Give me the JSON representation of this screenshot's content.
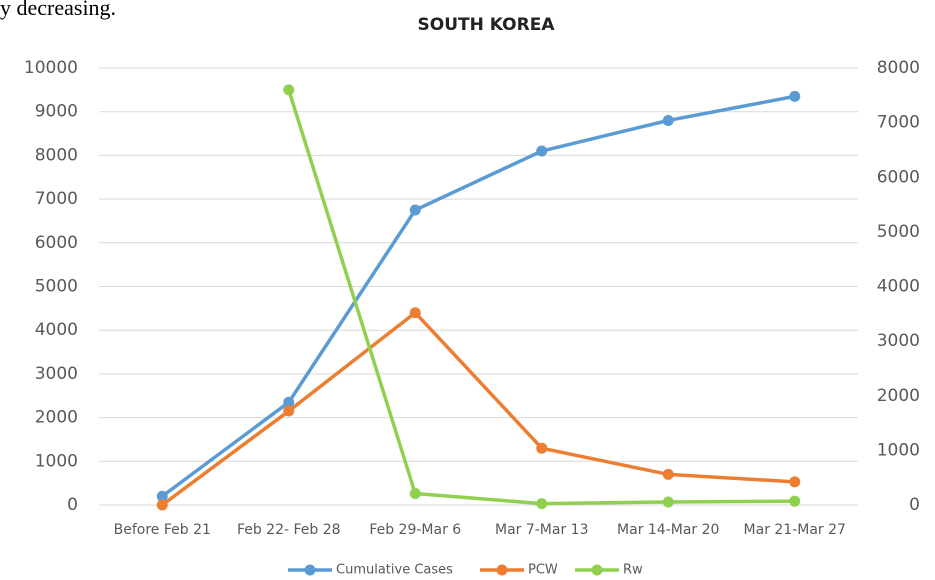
{
  "caption_fragment": "y decreasing.",
  "chart_data": {
    "type": "line",
    "title": "SOUTH KOREA",
    "categories": [
      "Before Feb 21",
      "Feb 22- Feb 28",
      "Feb 29-Mar 6",
      "Mar 7-Mar 13",
      "Mar 14-Mar 20",
      "Mar 21-Mar 27"
    ],
    "series": [
      {
        "name": "Cumulative Cases",
        "color": "#5b9bd5",
        "values": [
          200,
          2350,
          6750,
          8100,
          8800,
          9350
        ]
      },
      {
        "name": "PCW",
        "color": "#ed7d31",
        "values": [
          0,
          2150,
          4400,
          1300,
          700,
          530
        ]
      },
      {
        "name": "Rw",
        "color": "#8fd14f",
        "axis": "y2",
        "values": [
          null,
          7600,
          210,
          25,
          55,
          70
        ]
      }
    ],
    "ylim": [
      0,
      10000
    ],
    "yticks": [
      0,
      1000,
      2000,
      3000,
      4000,
      5000,
      6000,
      7000,
      8000,
      9000,
      10000
    ],
    "y2lim": [
      0,
      8000
    ],
    "y2ticks": [
      0,
      1000,
      2000,
      3000,
      4000,
      5000,
      6000,
      7000,
      8000
    ],
    "grid": true,
    "legend": "bottom"
  }
}
